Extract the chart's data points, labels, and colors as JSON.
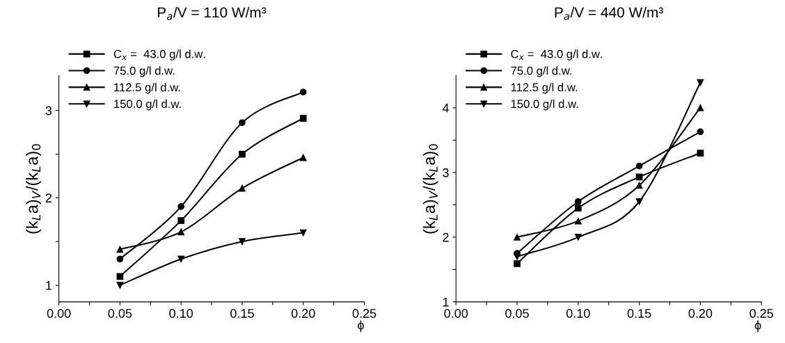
{
  "chart_data": [
    {
      "type": "line",
      "title": "P$_{a}$/V = 110 W/m³",
      "xlabel": "ϕ",
      "ylabel": "(k$_{L}$a)$_{V}$/(k$_{L}$a)$_{0}$",
      "x": [
        0.05,
        0.1,
        0.15,
        0.2
      ],
      "series": [
        {
          "name": "C$_{x}$ =  43.0 g/l d.w.",
          "color": "#000000",
          "marker": "square",
          "values": [
            1.1,
            1.74,
            2.5,
            2.91
          ]
        },
        {
          "name": "75.0 g/l d.w.",
          "color": "#000000",
          "marker": "circle",
          "values": [
            1.3,
            1.9,
            2.86,
            3.21
          ]
        },
        {
          "name": "112.5 g/l d.w.",
          "color": "#000000",
          "marker": "triangle",
          "values": [
            1.41,
            1.61,
            2.11,
            2.46
          ]
        },
        {
          "name": "150.0 g/l d.w.",
          "color": "#000000",
          "marker": "triangle_down",
          "values": [
            1.0,
            1.3,
            1.5,
            1.6
          ]
        }
      ],
      "xlim": [
        0,
        0.25
      ],
      "ylim": [
        0.81,
        3.4
      ],
      "xticks": [
        {
          "value": 0,
          "label": "0.00"
        },
        {
          "value": 0.025,
          "label": null
        },
        {
          "value": 0.05,
          "label": "0.05"
        },
        {
          "value": 0.075,
          "label": null
        },
        {
          "value": 0.1,
          "label": "0.10"
        },
        {
          "value": 0.125,
          "label": null
        },
        {
          "value": 0.15,
          "label": "0.15"
        },
        {
          "value": 0.175,
          "label": null
        },
        {
          "value": 0.2,
          "label": "0.20"
        },
        {
          "value": 0.225,
          "label": null
        },
        {
          "value": 0.25,
          "label": "0.25"
        }
      ],
      "yticks": [
        {
          "value": 1,
          "label": "1"
        },
        {
          "value": 1.5,
          "label": null
        },
        {
          "value": 2,
          "label": "2"
        },
        {
          "value": 2.5,
          "label": null
        },
        {
          "value": 3,
          "label": "3"
        }
      ],
      "legend": "top left",
      "grid": false,
      "line_style": "solid"
    },
    {
      "type": "line",
      "title": "P$_{a}$/V = 440 W/m³",
      "xlabel": "ϕ",
      "ylabel": "(k$_{L}$a)$_{V}$/(k$_{L}$a)$_{0}$",
      "x": [
        0.05,
        0.1,
        0.15,
        0.2
      ],
      "series": [
        {
          "name": "C$_{x}$ =  43.0 g/l d.w.",
          "color": "#000000",
          "marker": "square",
          "values": [
            1.59,
            2.45,
            2.93,
            3.3
          ]
        },
        {
          "name": "75.0 g/l d.w.",
          "color": "#000000",
          "marker": "circle",
          "values": [
            1.75,
            2.55,
            3.1,
            3.63
          ]
        },
        {
          "name": "112.5 g/l d.w.",
          "color": "#000000",
          "marker": "triangle",
          "values": [
            2.0,
            2.25,
            2.8,
            4.0
          ]
        },
        {
          "name": "150.0 g/l d.w.",
          "color": "#000000",
          "marker": "triangle_down",
          "values": [
            1.7,
            2.0,
            2.55,
            4.39
          ]
        }
      ],
      "xlim": [
        0,
        0.25
      ],
      "ylim": [
        1,
        4.5
      ],
      "xticks": [
        {
          "value": 0,
          "label": "0.00"
        },
        {
          "value": 0.025,
          "label": null
        },
        {
          "value": 0.05,
          "label": "0.05"
        },
        {
          "value": 0.075,
          "label": null
        },
        {
          "value": 0.1,
          "label": "0.10"
        },
        {
          "value": 0.125,
          "label": null
        },
        {
          "value": 0.15,
          "label": "0.15"
        },
        {
          "value": 0.175,
          "label": null
        },
        {
          "value": 0.2,
          "label": "0.20"
        },
        {
          "value": 0.225,
          "label": null
        },
        {
          "value": 0.25,
          "label": "0.25"
        }
      ],
      "yticks": [
        {
          "value": 1,
          "label": "1"
        },
        {
          "value": 1.5,
          "label": null
        },
        {
          "value": 2,
          "label": "2"
        },
        {
          "value": 2.5,
          "label": null
        },
        {
          "value": 3,
          "label": "3"
        },
        {
          "value": 3.5,
          "label": null
        },
        {
          "value": 4,
          "label": "4"
        }
      ],
      "legend": "top left",
      "grid": false,
      "line_style": "solid"
    }
  ]
}
